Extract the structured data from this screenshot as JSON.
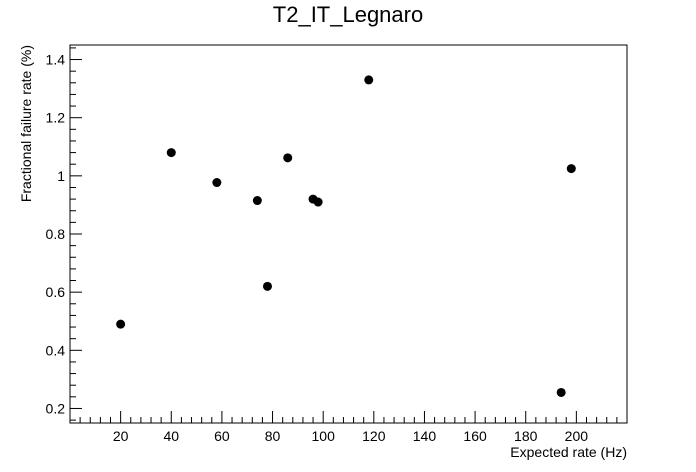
{
  "chart_data": {
    "type": "scatter",
    "title": "T2_IT_Legnaro",
    "xlabel": "Expected rate (Hz)",
    "ylabel": "Fractional failure rate (%)",
    "xlim": [
      0,
      220
    ],
    "ylim": [
      0.15,
      1.45
    ],
    "x_ticks": [
      20,
      40,
      60,
      80,
      100,
      120,
      140,
      160,
      180,
      200
    ],
    "y_ticks": [
      0.2,
      0.4,
      0.6,
      0.8,
      1,
      1.2,
      1.4
    ],
    "x_tick_labels": [
      "20",
      "40",
      "60",
      "80",
      "100",
      "120",
      "140",
      "160",
      "180",
      "200"
    ],
    "y_tick_labels": [
      "0.2",
      "0.4",
      "0.6",
      "0.8",
      "1",
      "1.2",
      "1.4"
    ],
    "grid": false,
    "legend": "none",
    "marker_color": "#000000",
    "points": [
      {
        "x": 20,
        "y": 0.49
      },
      {
        "x": 40,
        "y": 1.08
      },
      {
        "x": 58,
        "y": 0.977
      },
      {
        "x": 74,
        "y": 0.915
      },
      {
        "x": 78,
        "y": 0.62
      },
      {
        "x": 86,
        "y": 1.062
      },
      {
        "x": 96,
        "y": 0.92
      },
      {
        "x": 98,
        "y": 0.91
      },
      {
        "x": 118,
        "y": 1.33
      },
      {
        "x": 194,
        "y": 0.255
      },
      {
        "x": 198,
        "y": 1.025
      }
    ]
  }
}
